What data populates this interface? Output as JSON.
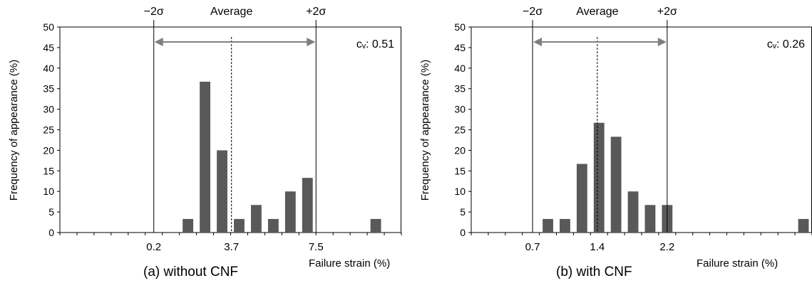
{
  "panels": [
    {
      "caption": "(a) without CNF",
      "chart_data": {
        "type": "bar",
        "title": "",
        "xlabel": "Failure strain (%)",
        "ylabel": "Frequency of appearance (%)",
        "ylim": [
          0,
          50
        ],
        "yticks": [
          0,
          5,
          10,
          15,
          20,
          25,
          30,
          35,
          40,
          45,
          50
        ],
        "bins": 24,
        "values": [
          0,
          0,
          0,
          0,
          0,
          0,
          0,
          3.3,
          36.7,
          20,
          3.3,
          6.7,
          3.3,
          10,
          13.3,
          0,
          0,
          0,
          3.3,
          0
        ],
        "markers": [
          {
            "label": "0.2",
            "top_label": "−2σ",
            "bin": 5.5,
            "style": "solid"
          },
          {
            "label": "3.7",
            "top_label": "Average",
            "bin": 10.05,
            "style": "dashed"
          },
          {
            "label": "7.5",
            "top_label": "+2σ",
            "bin": 15,
            "style": "solid"
          }
        ],
        "annotation": "cᵥ: 0.51",
        "grid": false
      }
    },
    {
      "caption": "(b) with CNF",
      "chart_data": {
        "type": "bar",
        "title": "",
        "xlabel": "Failure strain (%)",
        "ylabel": "Frequency of appearance (%)",
        "ylim": [
          0,
          50
        ],
        "yticks": [
          0,
          5,
          10,
          15,
          20,
          25,
          30,
          35,
          40,
          45,
          50
        ],
        "bins": 16,
        "values": [
          0,
          0,
          0,
          0,
          3.3,
          3.3,
          16.7,
          26.7,
          23.3,
          10,
          6.7,
          6.7,
          0,
          0,
          0,
          0,
          0,
          0,
          0,
          3.3
        ],
        "markers": [
          {
            "label": "0.7",
            "top_label": "−2σ",
            "bin": 3.6,
            "style": "solid"
          },
          {
            "label": "1.4",
            "top_label": "Average",
            "bin": 7.4,
            "style": "dashed"
          },
          {
            "label": "2.2",
            "top_label": "+2σ",
            "bin": 11.5,
            "style": "solid"
          }
        ],
        "annotation": "cᵥ: 0.26",
        "grid": false
      }
    }
  ],
  "colors": {
    "bar": "#595959",
    "arrow": "#7f7f7f",
    "axis": "#000000"
  }
}
